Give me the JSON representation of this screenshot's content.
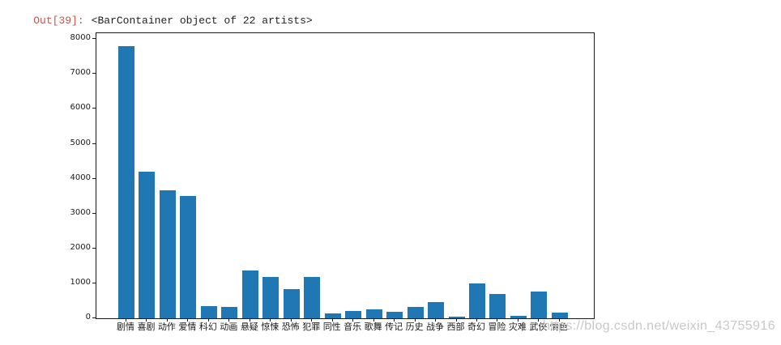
{
  "console": {
    "out_prompt": "Out[39]:",
    "out_value": "<BarContainer object of 22 artists>"
  },
  "watermark": "https://blog.csdn.net/weixin_43755916",
  "colors": {
    "bar": "#1f77b4",
    "out_prompt": "#c4574b",
    "watermark": "#c8c8c8",
    "axis": "#1a1a1a"
  },
  "chart_data": {
    "type": "bar",
    "title": "",
    "xlabel": "",
    "ylabel": "",
    "categories": [
      "剧情",
      "喜剧",
      "动作",
      "爱情",
      "科幻",
      "动画",
      "悬疑",
      "惊悚",
      "恐怖",
      "犯罪",
      "同性",
      "音乐",
      "歌舞",
      "传记",
      "历史",
      "战争",
      "西部",
      "奇幻",
      "冒险",
      "灾难",
      "武侠",
      "情色"
    ],
    "values": [
      7800,
      4200,
      3660,
      3510,
      360,
      330,
      1360,
      1180,
      840,
      1190,
      140,
      200,
      260,
      185,
      320,
      460,
      50,
      1010,
      700,
      65,
      770,
      160
    ],
    "yticks": [
      0,
      1000,
      2000,
      3000,
      4000,
      5000,
      6000,
      7000,
      8000
    ],
    "ylim": [
      0,
      8170
    ],
    "grid": false,
    "legend": null
  }
}
